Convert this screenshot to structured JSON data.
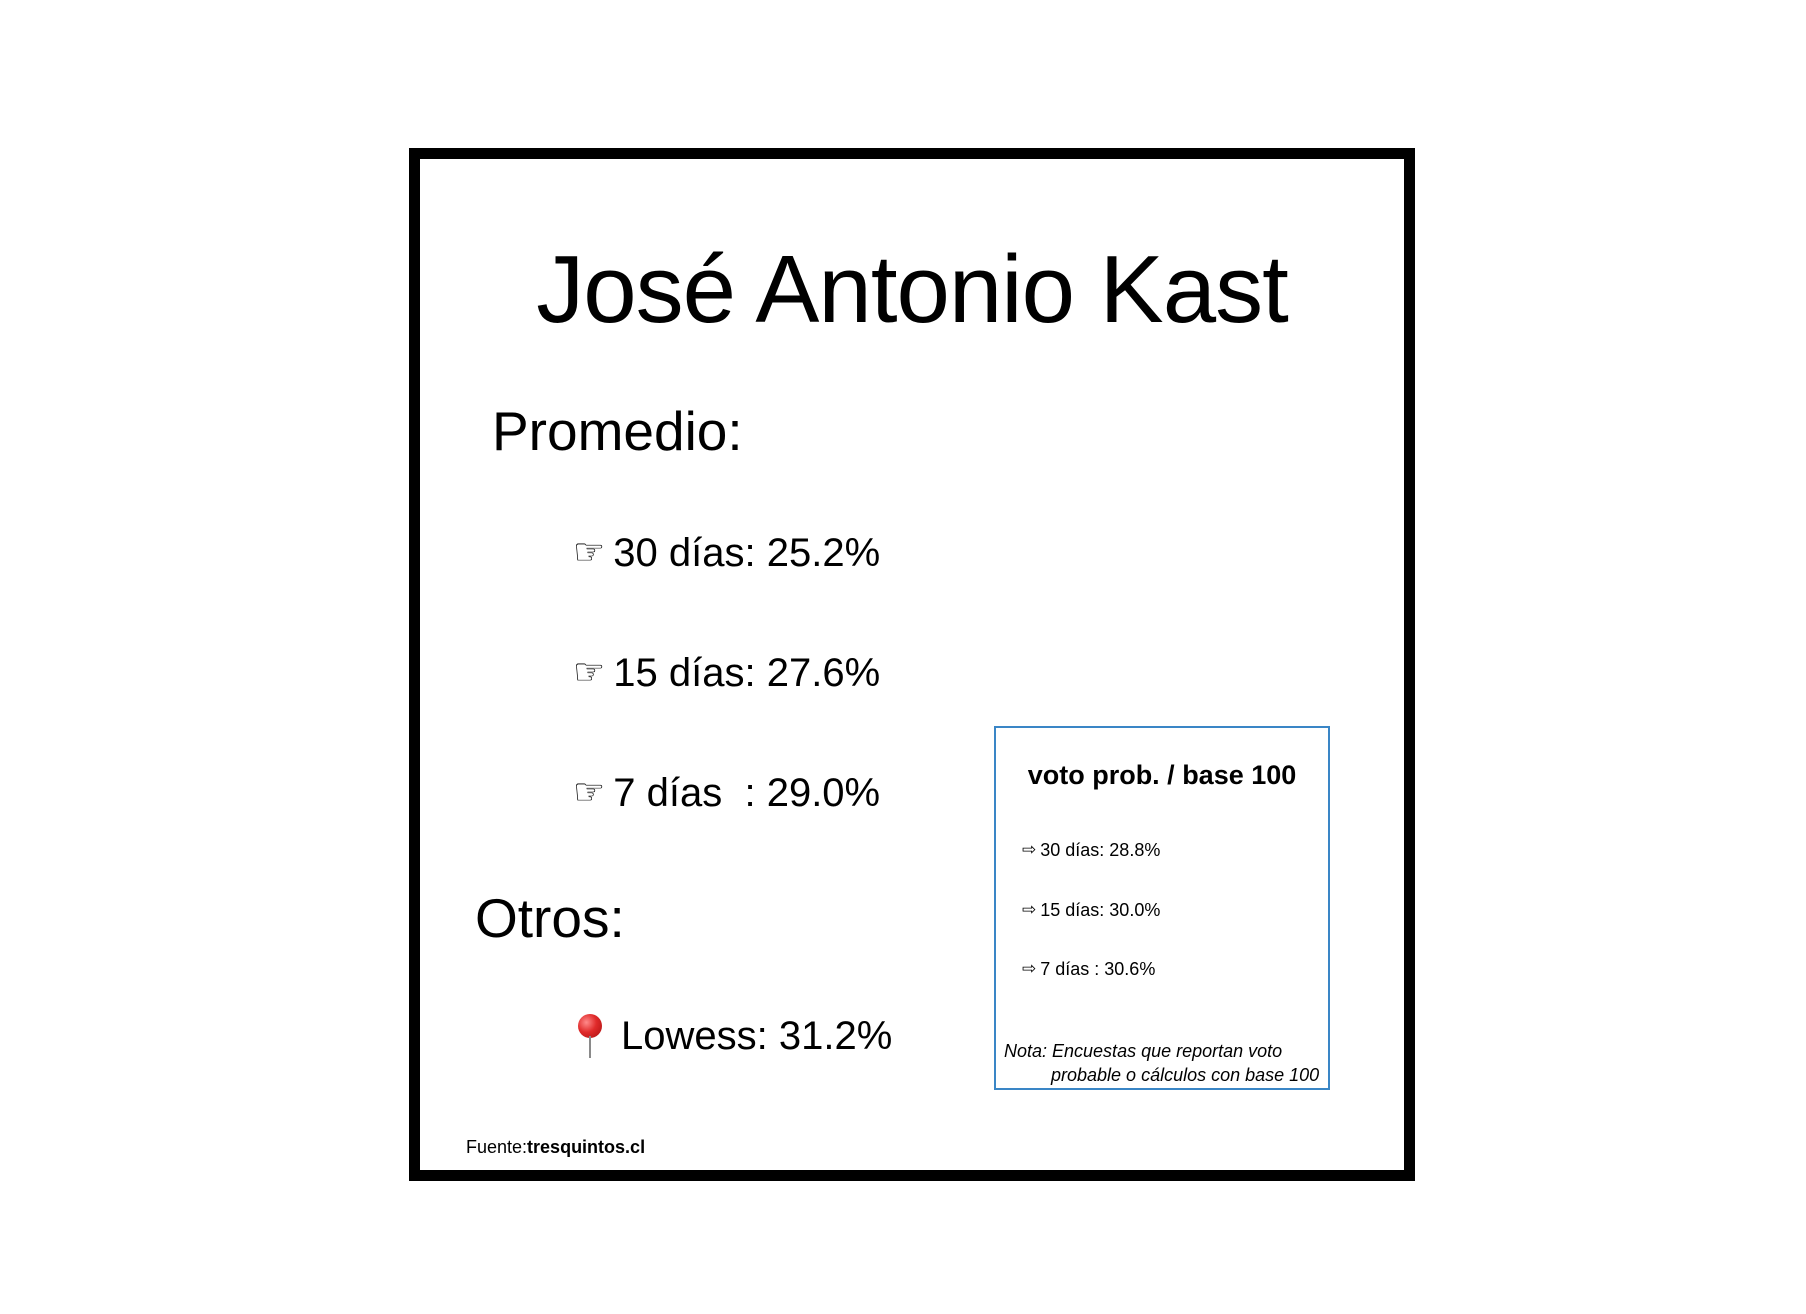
{
  "title": "José Antonio Kast",
  "promedio": {
    "heading": "Promedio:",
    "items": [
      {
        "icon": "pointing-hand-icon",
        "text": "30 días: 25.2%"
      },
      {
        "icon": "pointing-hand-icon",
        "text": "15 días: 27.6%"
      },
      {
        "icon": "pointing-hand-icon",
        "text": "7 días  : 29.0%"
      }
    ]
  },
  "otros": {
    "heading": "Otros:",
    "lowess": {
      "icon": "pushpin-icon",
      "text": "Lowess: 31.2%"
    }
  },
  "box": {
    "title": "voto prob. / base 100",
    "items": [
      {
        "icon": "right-arrow-icon",
        "text": "30 días: 28.8%"
      },
      {
        "icon": "right-arrow-icon",
        "text": "15 días: 30.0%"
      },
      {
        "icon": "right-arrow-icon",
        "text": "7 días : 30.6%"
      }
    ],
    "note_line1": "Nota: Encuestas que reportan voto",
    "note_line2": "probable o cálculos con base 100",
    "border_color": "#3a86c6"
  },
  "source": {
    "label": "Fuente:",
    "site": "tresquintos.cl"
  }
}
